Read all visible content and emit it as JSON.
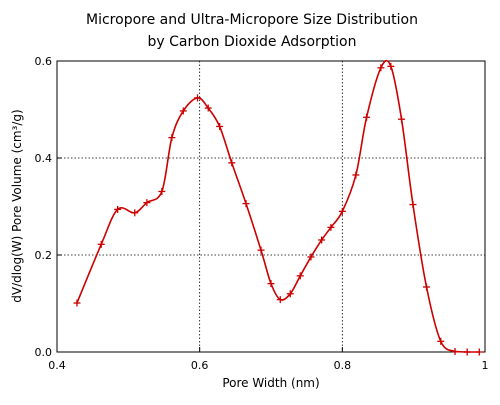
{
  "chart_data": {
    "type": "line",
    "title_lines": [
      "Micropore and Ultra-Micropore Size Distribution",
      "by Carbon Dioxide Adsorption"
    ],
    "xlabel": "Pore Width (nm)",
    "ylabel": "dV/dlog(W) Pore Volume (cm³/g)",
    "xlim": [
      0.4,
      1.0
    ],
    "ylim": [
      0.0,
      0.6
    ],
    "x_ticks": [
      0.4,
      0.6,
      0.8,
      1.0
    ],
    "x_tick_labels": [
      "0.4",
      "0.6",
      "0.8",
      "1"
    ],
    "y_ticks": [
      0.0,
      0.2,
      0.4,
      0.6
    ],
    "y_tick_labels": [
      "0.0",
      "0.2",
      "0.4",
      "0.6"
    ],
    "grid": "dotted at 0.6, 0.8 (x) and 0.2, 0.4 (y)",
    "series": [
      {
        "color": "#cc0000",
        "marker": "plus",
        "x": [
          0.428,
          0.462,
          0.485,
          0.509,
          0.526,
          0.547,
          0.561,
          0.577,
          0.597,
          0.612,
          0.628,
          0.645,
          0.665,
          0.686,
          0.7,
          0.713,
          0.727,
          0.741,
          0.756,
          0.771,
          0.784,
          0.8,
          0.819,
          0.834,
          0.854,
          0.868,
          0.883,
          0.899,
          0.918,
          0.938,
          0.958,
          0.975,
          0.992
        ],
        "y": [
          0.101,
          0.222,
          0.294,
          0.287,
          0.308,
          0.331,
          0.442,
          0.497,
          0.524,
          0.503,
          0.465,
          0.39,
          0.306,
          0.21,
          0.141,
          0.108,
          0.12,
          0.157,
          0.196,
          0.231,
          0.257,
          0.29,
          0.365,
          0.484,
          0.586,
          0.589,
          0.48,
          0.304,
          0.134,
          0.022,
          0.001,
          0.0,
          0.0
        ]
      }
    ]
  }
}
